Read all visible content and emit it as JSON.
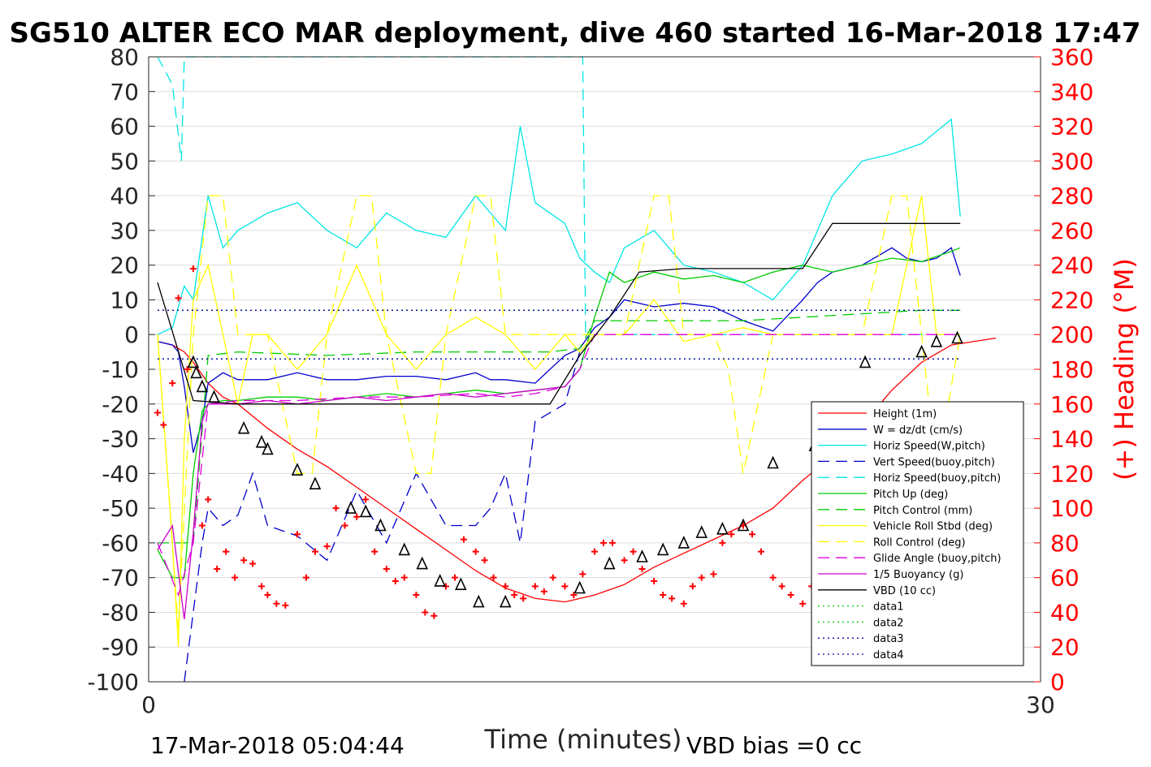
{
  "chart_data": {
    "type": "line",
    "title": "SG510 ALTER ECO MAR deployment, dive 460 started 16-Mar-2018 17:47",
    "xlabel": "Time (minutes)",
    "ylabel_right": "(+) Heading (°M)",
    "xlim": [
      0,
      30
    ],
    "ylim": [
      -100,
      80
    ],
    "ylim_right": [
      0,
      360
    ],
    "x_ticks": [
      "0",
      "30"
    ],
    "y_ticks": [
      "80",
      "70",
      "60",
      "50",
      "40",
      "30",
      "20",
      "10",
      "0",
      "-10",
      "-20",
      "-30",
      "-40",
      "-50",
      "-60",
      "-70",
      "-80",
      "-90",
      "-100"
    ],
    "y_ticks_right": [
      "360",
      "340",
      "320",
      "300",
      "280",
      "260",
      "240",
      "220",
      "200",
      "180",
      "160",
      "140",
      "120",
      "100",
      "80",
      "60",
      "40",
      "20",
      "0"
    ],
    "grid": true,
    "legend_position": "lower-right",
    "footer_left": "17-Mar-2018 05:04:44",
    "footer_right": "VBD bias =0 cc",
    "colors": {
      "height": "#ff0000",
      "w": "#0000cc",
      "horiz_w": "#00e5e5",
      "vert_buoy": "#0000cc",
      "horiz_buoy": "#00e5e5",
      "pitch": "#00cc00",
      "pitch_ctrl": "#00cc00",
      "roll": "#ffff00",
      "roll_ctrl": "#ffff00",
      "glide": "#e000e0",
      "buoy": "#cc00cc",
      "vbd": "#000000",
      "heading": "#ff0000"
    },
    "series": [
      {
        "key": "height",
        "name": "Height (1m)",
        "style": "solid",
        "x": [
          0.3,
          0.8,
          1.2,
          1.5,
          2,
          2.5,
          3,
          4,
          5,
          6,
          7,
          8,
          9,
          10,
          11,
          12,
          13,
          14,
          15,
          16,
          17,
          18,
          19,
          20,
          21,
          22,
          23,
          24,
          25,
          26,
          27,
          28.5
        ],
        "y": [
          -2,
          -3,
          -5,
          -8,
          -14,
          -18,
          -20,
          -27,
          -33,
          -38,
          -44,
          -50,
          -56,
          -62,
          -68,
          -73,
          -76,
          -77,
          -75,
          -72,
          -67,
          -63,
          -59,
          -55,
          -50,
          -42,
          -35,
          -26,
          -16,
          -8,
          -3,
          -1
        ]
      },
      {
        "key": "w",
        "name": "W = dz/dt (cm/s)",
        "style": "solid",
        "x": [
          0.3,
          0.8,
          1,
          1.2,
          1.5,
          1.8,
          2,
          2.5,
          3,
          4,
          5,
          6,
          7,
          8,
          9,
          10,
          11,
          11.5,
          12,
          13,
          14,
          14.5,
          15,
          15.5,
          16,
          17,
          18,
          19,
          20,
          21,
          22,
          22.5,
          23,
          24,
          25,
          25.5,
          26,
          26.5,
          27,
          27.3
        ],
        "y": [
          -2,
          -3,
          -5,
          -15,
          -34,
          -25,
          -14,
          -11,
          -13,
          -13,
          -11,
          -13,
          -13,
          -12,
          -12,
          -13,
          -11,
          -13,
          -13,
          -14,
          -6,
          -4,
          2,
          5,
          10,
          8,
          9,
          8,
          4,
          1,
          10,
          15,
          18,
          20,
          25,
          22,
          21,
          22,
          25,
          17
        ]
      },
      {
        "key": "horiz_w",
        "name": "Horiz Speed(W,pitch)",
        "style": "solid",
        "x": [
          0.3,
          0.8,
          1.2,
          1.5,
          2,
          2.5,
          3,
          4,
          5,
          6,
          7,
          8,
          9,
          10,
          11,
          12,
          12.5,
          13,
          14,
          14.5,
          15,
          15.5,
          16,
          17,
          18,
          19,
          20,
          21,
          22,
          23,
          24,
          25,
          26,
          27,
          27.3
        ],
        "y": [
          0,
          2,
          14,
          10,
          40,
          25,
          30,
          35,
          38,
          30,
          25,
          35,
          30,
          28,
          40,
          30,
          60,
          38,
          32,
          22,
          18,
          15,
          25,
          30,
          20,
          18,
          15,
          10,
          20,
          40,
          50,
          52,
          55,
          62,
          34
        ]
      },
      {
        "key": "vert_buoy",
        "name": "Vert Speed(buoy,pitch)",
        "style": "dashed",
        "x": [
          1.2,
          1.5,
          1.8,
          2,
          2.5,
          3,
          3.5,
          4,
          5,
          6,
          7,
          8,
          9,
          10,
          11,
          11.5,
          12,
          12.5,
          13,
          14,
          14.5,
          15
        ],
        "y": [
          -100,
          -80,
          -60,
          -50,
          -55,
          -52,
          -40,
          -55,
          -58,
          -65,
          -45,
          -60,
          -40,
          -55,
          -55,
          -50,
          -40,
          -60,
          -25,
          -20,
          -5,
          0
        ]
      },
      {
        "key": "horiz_buoy",
        "name": "Horiz Speed(buoy,pitch)",
        "style": "dashed",
        "x": [
          0.3,
          0.8,
          1.1,
          1.2,
          14.6,
          14.7,
          15,
          16,
          18,
          20,
          22,
          24,
          26,
          27.3
        ],
        "y": [
          80,
          72,
          50,
          80,
          80,
          0,
          0,
          0,
          0,
          0,
          0,
          0,
          0,
          0
        ]
      },
      {
        "key": "pitch",
        "name": "Pitch Up (deg)",
        "style": "solid",
        "x": [
          0.3,
          0.8,
          1.2,
          1.5,
          1.8,
          2,
          2.5,
          3,
          4,
          5,
          6,
          7,
          8,
          9,
          10,
          11,
          12,
          13,
          14,
          14.5,
          15,
          15.5,
          16,
          17,
          18,
          19,
          20,
          21,
          22,
          23,
          24,
          25,
          26,
          27,
          27.3
        ],
        "y": [
          -62,
          -70,
          -70,
          -40,
          -22,
          -20,
          -19,
          -19,
          -18,
          -18,
          -19,
          -18,
          -17,
          -18,
          -17,
          -16,
          -17,
          -16,
          -15,
          -10,
          5,
          18,
          15,
          18,
          16,
          17,
          15,
          18,
          20,
          18,
          20,
          22,
          21,
          24,
          25
        ]
      },
      {
        "key": "pitch_ctrl",
        "name": "Pitch Control (mm)",
        "style": "dashed",
        "x": [
          0.3,
          1.5,
          2,
          3,
          6,
          9,
          12,
          13.5,
          14.5,
          15,
          16,
          20,
          24,
          26,
          27.3
        ],
        "y": [
          -60,
          -60,
          -6,
          -5,
          -6,
          -5,
          -5,
          -5,
          -4,
          4,
          4,
          4,
          6,
          7,
          7
        ]
      },
      {
        "key": "roll",
        "name": "Vehicle Roll Stbd (deg)",
        "style": "solid",
        "x": [
          0.3,
          0.8,
          1,
          1.2,
          1.5,
          2,
          2.5,
          3,
          3.5,
          4,
          5,
          6,
          7,
          8,
          9,
          10,
          11,
          12,
          13,
          14,
          14.5,
          15,
          16,
          17,
          18,
          19,
          20,
          21,
          22,
          23,
          24,
          25,
          26,
          26.5,
          27.3
        ],
        "y": [
          0,
          -60,
          -90,
          -30,
          10,
          20,
          0,
          -20,
          0,
          0,
          -10,
          0,
          20,
          0,
          -10,
          0,
          5,
          0,
          -10,
          0,
          -5,
          0,
          0,
          10,
          -2,
          0,
          2,
          0,
          0,
          0,
          0,
          0,
          40,
          0,
          0
        ]
      },
      {
        "key": "roll_ctrl",
        "name": "Roll Control (deg)",
        "style": "dashed",
        "x": [
          0.3,
          1,
          1.5,
          2,
          2.5,
          3,
          3.5,
          4,
          5,
          5.5,
          6,
          7,
          7.5,
          8,
          9,
          9.5,
          10,
          11,
          11.5,
          12,
          13,
          14,
          15,
          16,
          17,
          17.5,
          18,
          19,
          19.5,
          20,
          21,
          22,
          23,
          24,
          25,
          25.5,
          26,
          26.5,
          27.3
        ],
        "y": [
          0,
          -85,
          0,
          40,
          40,
          0,
          0,
          0,
          -40,
          -40,
          0,
          40,
          40,
          0,
          -40,
          -40,
          0,
          40,
          40,
          0,
          0,
          0,
          0,
          0,
          40,
          40,
          0,
          0,
          -10,
          -40,
          0,
          0,
          0,
          0,
          40,
          40,
          0,
          -40,
          0
        ]
      },
      {
        "key": "glide",
        "name": "Glide Angle (buoy,pitch)",
        "style": "dashed",
        "x": [
          0.3,
          1,
          1.5,
          2,
          3,
          5,
          7,
          9,
          11,
          12,
          13,
          14,
          14.5,
          15,
          16,
          20,
          24,
          27.3
        ],
        "y": [
          -60,
          -75,
          -60,
          -20,
          -19,
          -19,
          -18,
          -18,
          -17,
          -18,
          -17,
          -15,
          -10,
          0,
          0,
          0,
          0,
          0
        ]
      },
      {
        "key": "buoy",
        "name": "1/5 Buoyancy (g)",
        "style": "solid",
        "x": [
          0.3,
          0.8,
          1.2,
          1.5,
          1.8,
          2,
          3,
          4,
          5,
          6,
          7,
          8,
          9,
          10,
          11,
          12,
          13,
          14,
          14.5
        ],
        "y": [
          -62,
          -55,
          -82,
          -57,
          -25,
          -20,
          -20,
          -19,
          -20,
          -19,
          -18,
          -19,
          -18,
          -17,
          -18,
          -17,
          -16,
          -15,
          -10
        ]
      },
      {
        "key": "vbd",
        "name": "VBD (10 cc)",
        "style": "solid",
        "x": [
          0.3,
          1.5,
          3,
          6,
          9,
          12,
          13.5,
          14.5,
          15.5,
          16.5,
          18,
          20,
          22,
          23,
          24,
          26,
          27.3
        ],
        "y": [
          15,
          -19,
          -20,
          -20,
          -20,
          -20,
          -20,
          -6,
          5,
          18,
          19,
          19,
          19,
          32,
          32,
          32,
          32
        ]
      },
      {
        "key": "data1",
        "name": "data1",
        "style": "dotted",
        "x": [
          0.3,
          27.3
        ],
        "y": [
          7,
          7
        ]
      },
      {
        "key": "data2",
        "name": "data2",
        "style": "dotted",
        "x": [
          0.3,
          27.3
        ],
        "y": [
          -7,
          -7
        ]
      },
      {
        "key": "data3",
        "name": "data3",
        "style": "dotted",
        "x": [
          0.3,
          27.3
        ],
        "y": [
          7,
          7
        ]
      },
      {
        "key": "data4",
        "name": "data4",
        "style": "dotted",
        "x": [
          0.3,
          27.3
        ],
        "y": [
          -7,
          -7
        ]
      }
    ],
    "heading": {
      "style": "plus",
      "x": [
        0.3,
        0.5,
        0.8,
        1,
        1.3,
        1.5,
        1.8,
        2,
        2.3,
        2.6,
        2.9,
        3.2,
        3.5,
        3.8,
        4,
        4.3,
        4.6,
        5,
        5.3,
        5.6,
        6,
        6.3,
        6.6,
        7,
        7.3,
        7.6,
        8,
        8.3,
        8.6,
        9,
        9.3,
        9.6,
        10,
        10.3,
        10.6,
        11,
        11.3,
        11.6,
        12,
        12.3,
        12.6,
        13,
        13.3,
        13.6,
        14,
        14.3,
        14.6,
        15,
        15.3,
        15.6,
        16,
        16.3,
        16.6,
        17,
        17.3,
        17.6,
        18,
        18.3,
        18.6,
        19,
        19.3,
        19.6,
        20,
        20.3,
        20.6,
        21,
        21.3,
        21.6,
        22,
        22.3,
        22.6,
        23,
        23.3,
        23.6,
        24,
        24.3,
        24.6,
        25,
        25.3,
        25.6,
        26,
        26.3,
        26.6,
        27,
        27.3
      ],
      "y": [
        155,
        148,
        172,
        221,
        180,
        238,
        90,
        105,
        65,
        75,
        60,
        70,
        68,
        55,
        50,
        45,
        44,
        85,
        60,
        75,
        78,
        100,
        90,
        95,
        105,
        75,
        65,
        58,
        60,
        50,
        40,
        38,
        55,
        60,
        82,
        75,
        70,
        60,
        55,
        50,
        48,
        55,
        52,
        60,
        55,
        50,
        62,
        75,
        80,
        80,
        70,
        75,
        65,
        58,
        50,
        48,
        45,
        55,
        60,
        62,
        80,
        85,
        90,
        85,
        75,
        60,
        55,
        50,
        45,
        55,
        62,
        60,
        50,
        55,
        40,
        35,
        45,
        55,
        60,
        75,
        82,
        80,
        75,
        35,
        25
      ]
    },
    "markers": {
      "style": "triangle",
      "x": [
        1.5,
        1.6,
        1.8,
        2.2,
        3.2,
        3.8,
        4,
        5,
        5.6,
        6.8,
        7.3,
        7.8,
        8.6,
        9.2,
        9.8,
        10.5,
        11.1,
        12,
        14.5,
        15.5,
        16.6,
        17.3,
        18,
        18.6,
        19.3,
        20,
        21,
        22.4,
        23,
        23.6,
        24.1,
        26,
        26.5,
        27.2
      ],
      "y": [
        -8,
        -11,
        -15,
        -18,
        -27,
        -31,
        -33,
        -39,
        -43,
        -50,
        -51,
        -55,
        -62,
        -66,
        -71,
        -72,
        -77,
        -77,
        -73,
        -66,
        -64,
        -62,
        -60,
        -57,
        -56,
        -55,
        -37,
        -32,
        -24,
        -22,
        -8,
        -5,
        -2,
        -1
      ]
    }
  }
}
